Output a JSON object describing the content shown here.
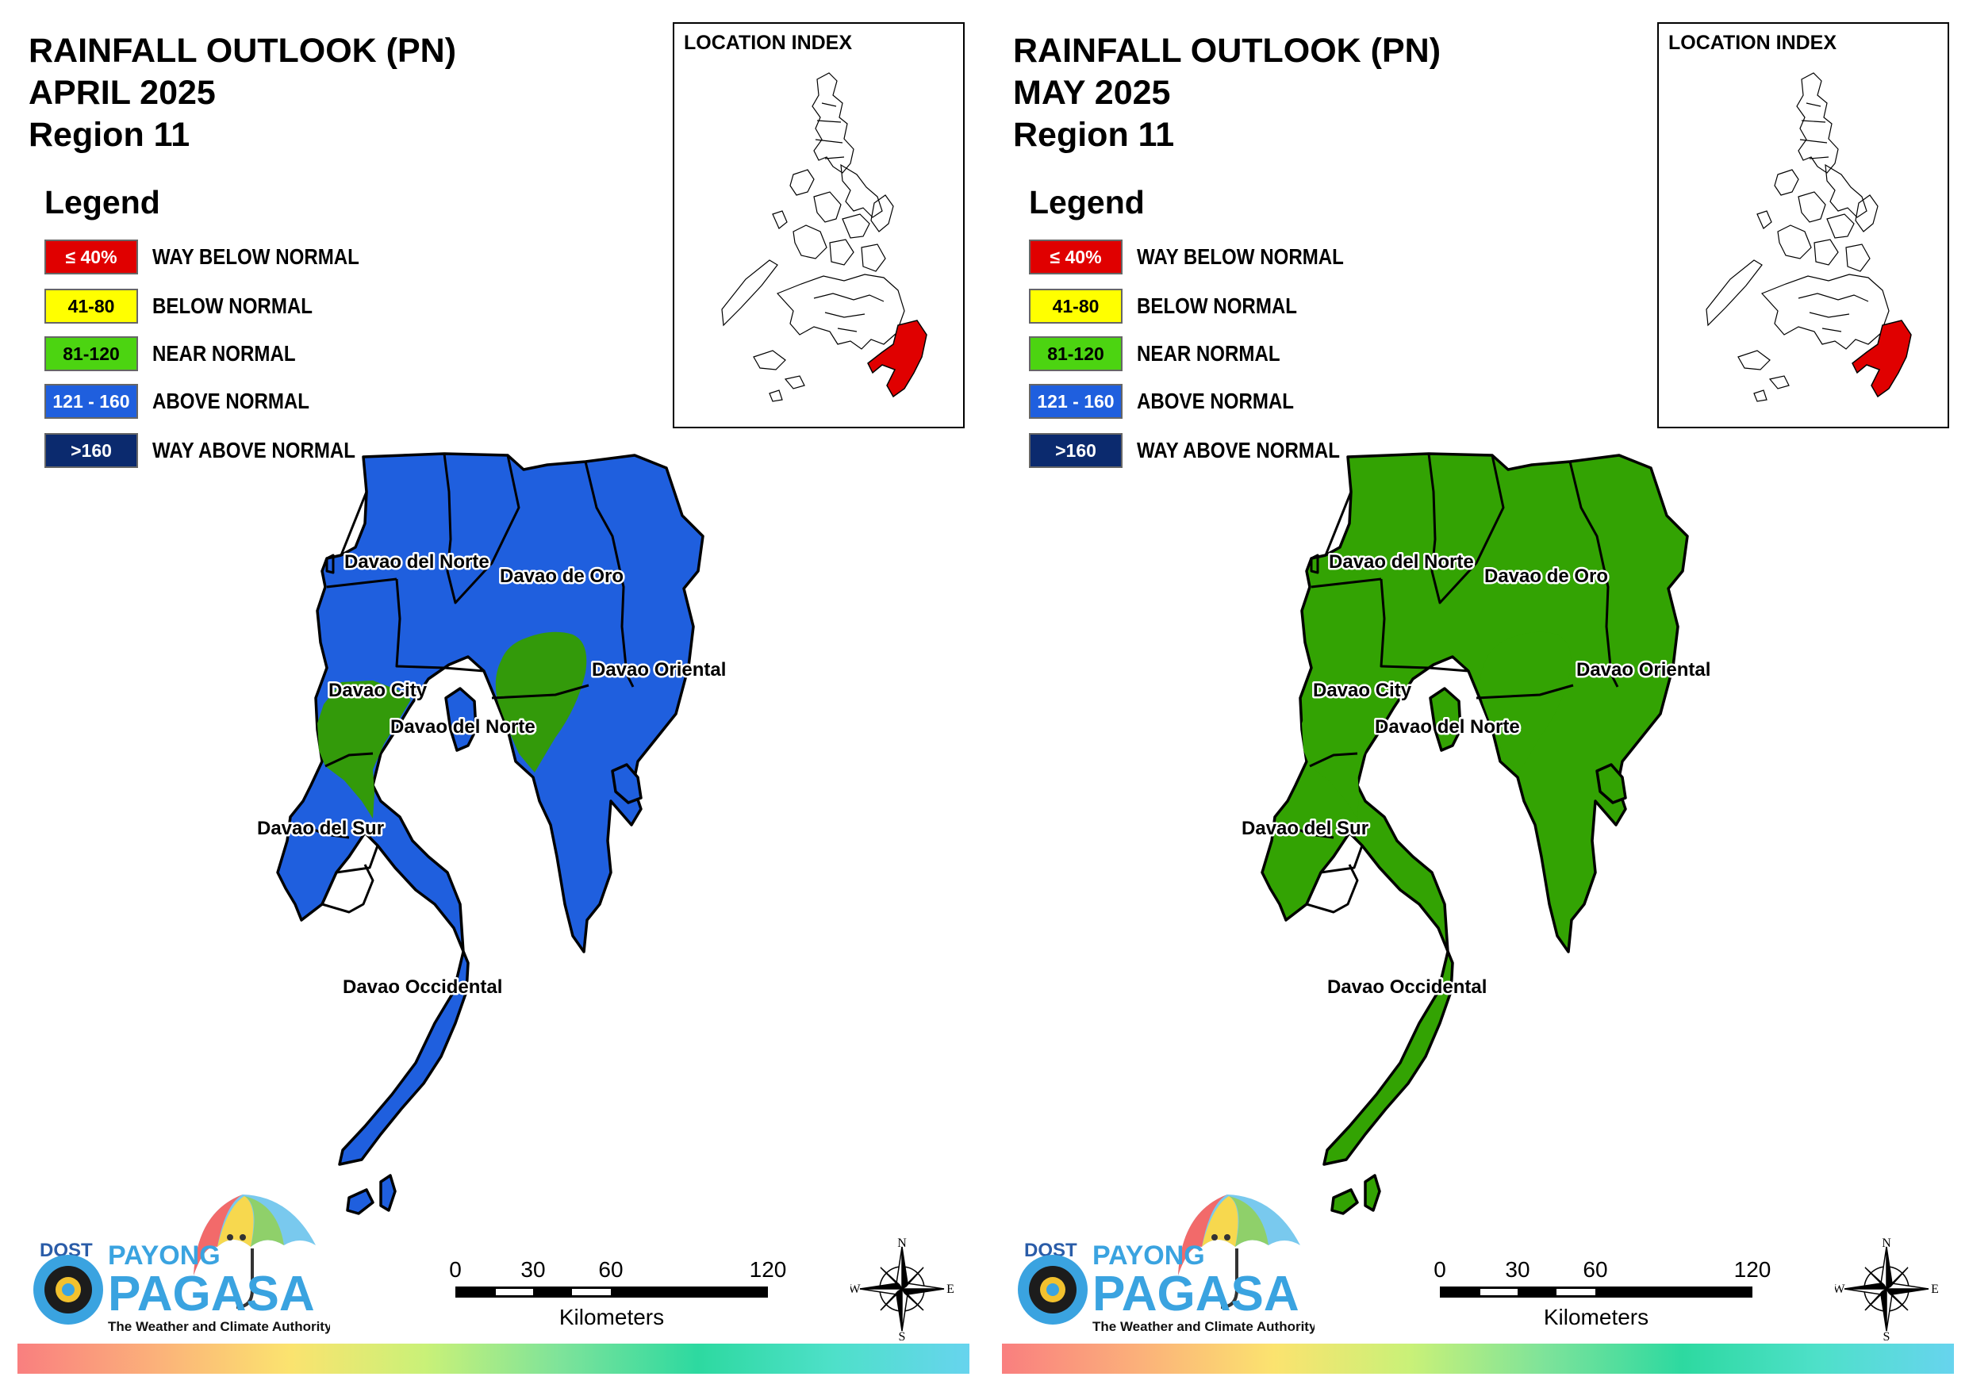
{
  "panels": [
    {
      "title_line1": "RAINFALL OUTLOOK (PN)",
      "title_line2": "APRIL 2025",
      "title_line3": "Region 11",
      "region_fill": "#1f5fde",
      "secondary_fill": "#339a0a"
    },
    {
      "title_line1": "RAINFALL OUTLOOK (PN)",
      "title_line2": "MAY 2025",
      "title_line3": "Region 11",
      "region_fill": "#33a303",
      "secondary_fill": "#33a303"
    }
  ],
  "legend": {
    "title": "Legend",
    "items": [
      {
        "range": "≤ 40%",
        "label": "WAY BELOW NORMAL",
        "color": "#e00000",
        "text_color": "#ffffff"
      },
      {
        "range": "41-80",
        "label": "BELOW NORMAL",
        "color": "#ffff00",
        "text_color": "#000000"
      },
      {
        "range": "81-120",
        "label": "NEAR NORMAL",
        "color": "#4cd411",
        "text_color": "#000000"
      },
      {
        "range": "121 - 160",
        "label": "ABOVE NORMAL",
        "color": "#1f5fde",
        "text_color": "#ffffff"
      },
      {
        "range": ">160",
        "label": "WAY ABOVE NORMAL",
        "color": "#0b2a6e",
        "text_color": "#ffffff"
      }
    ]
  },
  "location_index": {
    "title": "LOCATION INDEX",
    "highlight_color": "#e00000"
  },
  "place_labels": {
    "davao_del_norte_top": "Davao del Norte",
    "davao_de_oro": "Davao de Oro",
    "davao_oriental": "Davao Oriental",
    "davao_city": "Davao City",
    "davao_del_norte_mid": "Davao del Norte",
    "davao_del_sur": "Davao del Sur",
    "davao_occidental": "Davao Occidental"
  },
  "logo": {
    "dost": "DOST",
    "payong": "PAYONG",
    "pagasa": "PAGASA",
    "tagline": "The Weather and Climate Authority"
  },
  "scale_bar": {
    "ticks": [
      "0",
      "30",
      "60",
      "120"
    ],
    "unit": "Kilometers"
  },
  "compass": {
    "n": "N",
    "s": "S",
    "e": "E",
    "w": "W"
  }
}
